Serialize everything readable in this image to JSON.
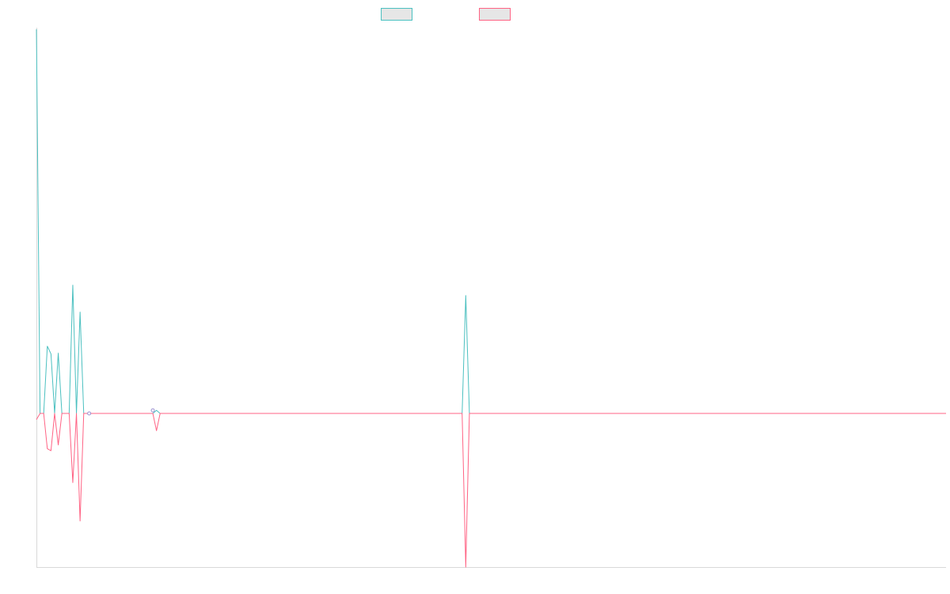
{
  "chart_data": {
    "type": "line",
    "x": [
      0,
      1,
      2,
      3,
      4,
      5,
      6,
      7,
      8,
      9,
      10,
      11,
      12,
      13,
      14,
      15,
      16,
      17,
      18,
      19,
      20,
      21,
      22,
      23,
      24,
      25,
      26,
      27,
      28,
      29,
      30,
      31,
      32,
      33,
      34,
      35,
      36,
      37,
      38,
      39,
      40,
      41,
      42,
      43,
      44,
      45,
      46,
      47,
      48,
      49,
      50,
      51,
      52,
      53,
      54,
      55,
      56,
      57,
      58,
      59,
      60,
      61,
      62,
      63,
      64,
      65,
      66,
      67,
      68,
      69,
      70,
      71,
      72,
      73,
      74,
      75,
      76,
      77,
      78,
      79,
      80,
      81,
      82,
      83,
      84,
      85,
      86,
      87,
      88,
      89,
      90,
      91,
      92,
      93,
      94,
      95,
      96,
      97,
      98,
      99,
      100,
      101,
      102,
      103,
      104,
      105,
      106,
      107,
      108,
      109,
      110,
      111,
      112,
      113,
      114,
      115,
      116,
      117,
      118,
      119,
      120,
      121,
      122,
      123,
      124,
      125,
      126,
      127,
      128,
      129,
      130,
      131,
      132,
      133,
      134,
      135,
      136,
      137,
      138,
      139,
      140,
      141,
      142,
      143,
      144,
      145,
      146,
      147,
      148,
      149,
      150,
      151,
      152,
      153,
      154,
      155,
      156,
      157,
      158,
      159,
      160,
      161,
      162,
      163,
      164,
      165,
      166,
      167,
      168,
      169,
      170,
      171,
      172,
      173,
      174,
      175,
      176,
      177,
      178,
      179,
      180,
      181,
      182,
      183,
      184,
      185,
      186,
      187,
      188,
      189,
      190,
      191,
      192,
      193,
      194,
      195,
      196,
      197,
      198,
      199,
      200,
      201,
      202,
      203,
      204,
      205,
      206,
      207,
      208,
      209,
      210,
      211,
      212,
      213,
      214,
      215,
      216,
      217,
      218,
      219,
      220,
      221,
      222,
      223,
      224,
      225,
      226,
      227,
      228,
      229,
      230,
      231,
      232,
      233,
      234,
      235,
      236,
      237,
      238,
      239,
      240,
      241,
      242,
      243,
      244,
      245,
      246,
      247,
      248,
      249,
      250
    ],
    "series": [
      {
        "color": "#4bc0c0",
        "fill": "#e6e6e6",
        "points": [
          [
            0,
            1.0
          ],
          [
            1,
            0.0
          ],
          [
            2,
            0.0
          ],
          [
            3,
            0.175
          ],
          [
            4,
            0.155
          ],
          [
            5,
            0.0
          ],
          [
            6,
            0.157
          ],
          [
            7,
            0.0
          ],
          [
            8,
            0.0
          ],
          [
            9,
            0.0
          ],
          [
            10,
            0.334
          ],
          [
            11,
            0.0
          ],
          [
            12,
            0.264
          ],
          [
            13,
            0.0
          ],
          [
            14,
            0.0
          ],
          [
            15,
            0.0
          ],
          [
            16,
            0.0
          ],
          [
            32,
            0.0
          ],
          [
            33,
            0.008
          ],
          [
            34,
            0.0
          ],
          [
            117,
            0.0
          ],
          [
            118,
            0.307
          ],
          [
            119,
            0.0
          ],
          [
            250,
            0.0
          ]
        ]
      },
      {
        "color": "#ff6384",
        "fill": "#e6e6e6",
        "points": [
          [
            0,
            -0.016
          ],
          [
            1,
            0.0
          ],
          [
            2,
            0.0
          ],
          [
            3,
            -0.092
          ],
          [
            4,
            -0.097
          ],
          [
            5,
            0.0
          ],
          [
            6,
            -0.082
          ],
          [
            7,
            0.0
          ],
          [
            8,
            0.0
          ],
          [
            9,
            0.0
          ],
          [
            10,
            -0.18
          ],
          [
            11,
            0.0
          ],
          [
            12,
            -0.28
          ],
          [
            13,
            0.0
          ],
          [
            14,
            0.0
          ],
          [
            15,
            0.0
          ],
          [
            16,
            0.0
          ],
          [
            32,
            0.0
          ],
          [
            33,
            -0.045
          ],
          [
            34,
            0.0
          ],
          [
            117,
            0.0
          ],
          [
            118,
            -0.4
          ],
          [
            119,
            0.0
          ],
          [
            250,
            0.0
          ]
        ]
      }
    ],
    "markers": [
      {
        "x": 14.5,
        "y": 0.0
      },
      {
        "x": 32,
        "y": 0.008
      }
    ],
    "xlim": [
      0,
      250
    ],
    "ylim": [
      -0.4,
      1.0
    ],
    "grid": false,
    "legend_position": "top-center"
  }
}
